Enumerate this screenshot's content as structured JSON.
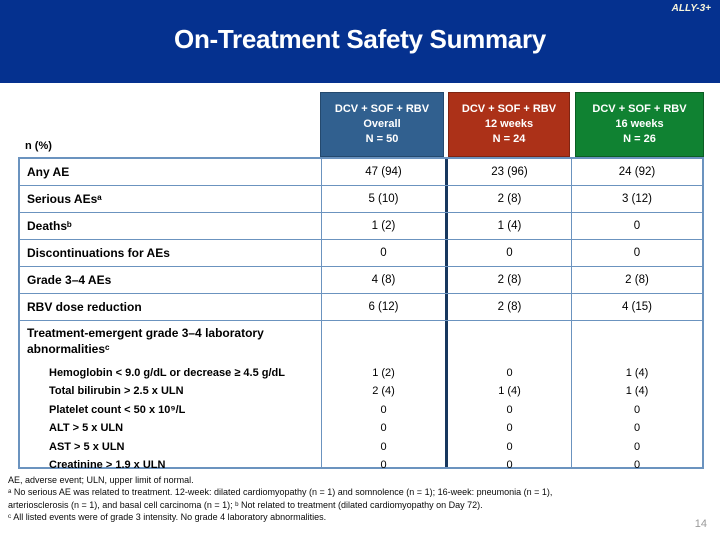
{
  "slide": {
    "study_tag": "ALLY-3+",
    "title": "On-Treatment Safety Summary",
    "page_number": "14"
  },
  "colors": {
    "banner_blue": "#05318F",
    "overall_header_blue": "#31608F",
    "weeks12_header_red": "#AC3118",
    "weeks16_header_green": "#108232",
    "grid_border_blue": "#6B93BF",
    "thick_divider_navy": "#17375E"
  },
  "table": {
    "row_header_label": "n (%)",
    "columns": [
      {
        "lines": [
          "DCV + SOF + RBV",
          "Overall",
          "N = 50"
        ]
      },
      {
        "lines": [
          "DCV + SOF + RBV",
          "12 weeks",
          "N = 24"
        ]
      },
      {
        "lines": [
          "DCV + SOF + RBV",
          "16 weeks",
          "N = 26"
        ]
      }
    ],
    "rows": [
      {
        "label": "Any AE",
        "values": [
          "47 (94)",
          "23 (96)",
          "24 (92)"
        ]
      },
      {
        "label": "Serious AEsᵃ",
        "values": [
          "5 (10)",
          "2 (8)",
          "3 (12)"
        ]
      },
      {
        "label": "Deathsᵇ",
        "values": [
          "1 (2)",
          "1 (4)",
          "0"
        ]
      },
      {
        "label": "Discontinuations for AEs",
        "values": [
          "0",
          "0",
          "0"
        ]
      },
      {
        "label": "Grade 3–4 AEs",
        "values": [
          "4 (8)",
          "2 (8)",
          "2 (8)"
        ]
      },
      {
        "label": "RBV dose reduction",
        "values": [
          "6 (12)",
          "2 (8)",
          "4 (15)"
        ]
      }
    ],
    "lab_section": {
      "label_line1": "Treatment-emergent grade 3–4 laboratory",
      "label_line2": "abnormalitiesᶜ",
      "items": [
        {
          "label": "Hemoglobin < 9.0 g/dL or decrease ≥ 4.5 g/dL",
          "values": [
            "1 (2)",
            "0",
            "1 (4)"
          ]
        },
        {
          "label": "Total bilirubin > 2.5 x ULN",
          "values": [
            "2 (4)",
            "1 (4)",
            "1 (4)"
          ]
        },
        {
          "label": "Platelet count < 50 x 10⁹/L",
          "values": [
            "0",
            "0",
            "0"
          ]
        },
        {
          "label": "ALT > 5 x ULN",
          "values": [
            "0",
            "0",
            "0"
          ]
        },
        {
          "label": "AST > 5 x ULN",
          "values": [
            "0",
            "0",
            "0"
          ]
        },
        {
          "label": "Creatinine > 1.9 x ULN",
          "values": [
            "0",
            "0",
            "0"
          ]
        }
      ]
    }
  },
  "footnotes": {
    "line1": "AE, adverse event; ULN, upper limit of normal.",
    "line2": "ᵃ No serious AE was related to treatment. 12-week: dilated cardiomyopathy (n = 1) and somnolence (n = 1); 16-week: pneumonia (n = 1),",
    "line3": "arteriosclerosis (n = 1), and basal cell carcinoma (n = 1); ᵇ Not related to treatment (dilated cardiomyopathy on Day 72).",
    "line4": "ᶜ All listed events were of grade 3 intensity. No grade 4 laboratory abnormalities."
  }
}
